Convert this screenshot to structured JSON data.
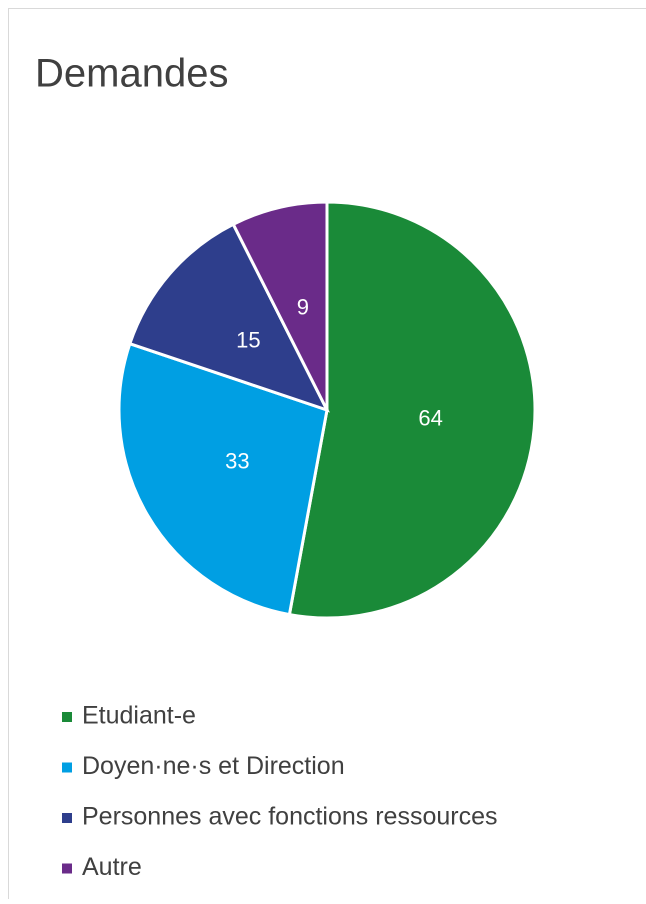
{
  "chart_data": {
    "type": "pie",
    "title": "Demandes",
    "categories": [
      "Etudiant-e",
      "Doyen·ne·s et Direction",
      "Personnes avec fonctions ressources",
      "Autre"
    ],
    "values": [
      64,
      33,
      15,
      9
    ],
    "colors": [
      "#1a8a38",
      "#009fe3",
      "#2e3e8c",
      "#6a2b89"
    ],
    "legend": "bottom"
  }
}
